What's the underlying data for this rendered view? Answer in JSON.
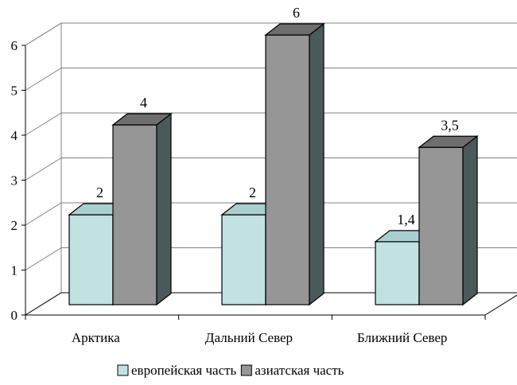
{
  "chart_data": {
    "type": "bar",
    "style": "3d-clustered-column",
    "categories": [
      "Арктика",
      "Дальний Север",
      "Ближний Север"
    ],
    "series": [
      {
        "name": "европейская часть",
        "values": [
          2,
          2,
          1.4
        ],
        "labels": [
          "2",
          "2",
          "1,4"
        ],
        "color": "#C2E2E2"
      },
      {
        "name": "азиатская часть",
        "values": [
          4,
          6,
          3.5
        ],
        "labels": [
          "4",
          "6",
          "3,5"
        ],
        "color": "#969696",
        "side_color": "#4A5A5A",
        "top_color": "#6E6E6E"
      }
    ],
    "y_ticks": [
      "0",
      "1",
      "2",
      "3",
      "4",
      "5",
      "6"
    ],
    "ylim": [
      0,
      6
    ],
    "grid": true,
    "legend": "bottom",
    "title": "",
    "xlabel": "",
    "ylabel": ""
  }
}
